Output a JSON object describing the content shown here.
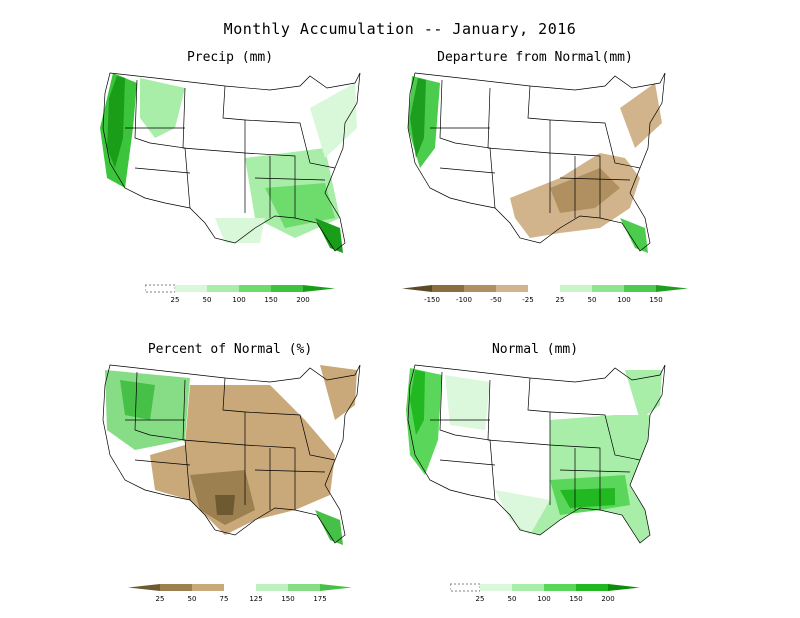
{
  "title": "Monthly Accumulation -- January, 2016",
  "panels": [
    {
      "id": "precip",
      "title": "Precip (mm)",
      "colorbar": {
        "ticks": [
          "25",
          "50",
          "100",
          "150",
          "200"
        ],
        "colors": [
          "#ffffff",
          "#d9f7d9",
          "#a8eea8",
          "#6ddc6d",
          "#3cc43c",
          "#1a9e1a"
        ]
      }
    },
    {
      "id": "departure",
      "title": "Departure from Normal(mm)",
      "colorbar": {
        "ticks": [
          "-150",
          "-100",
          "-50",
          "-25",
          "25",
          "50",
          "100",
          "150"
        ],
        "colors": [
          "#5a4a28",
          "#8a6e40",
          "#b09060",
          "#d2b48c",
          "#ffffff",
          "#c8f5c8",
          "#8fe48f",
          "#4ccc4c",
          "#1e9e1e"
        ]
      }
    },
    {
      "id": "percent",
      "title": "Percent of Normal (%)",
      "colorbar": {
        "ticks": [
          "25",
          "50",
          "75",
          "125",
          "150",
          "175"
        ],
        "colors": [
          "#6e5a30",
          "#9c8050",
          "#c9a87a",
          "#ffffff",
          "#bff0bf",
          "#86dd86",
          "#46c046"
        ]
      }
    },
    {
      "id": "normal",
      "title": "Normal (mm)",
      "colorbar": {
        "ticks": [
          "25",
          "50",
          "100",
          "150",
          "200"
        ],
        "colors": [
          "#ffffff",
          "#dcf8dc",
          "#a8eea8",
          "#5ad65a",
          "#22b822",
          "#0a8e0a"
        ]
      }
    }
  ]
}
